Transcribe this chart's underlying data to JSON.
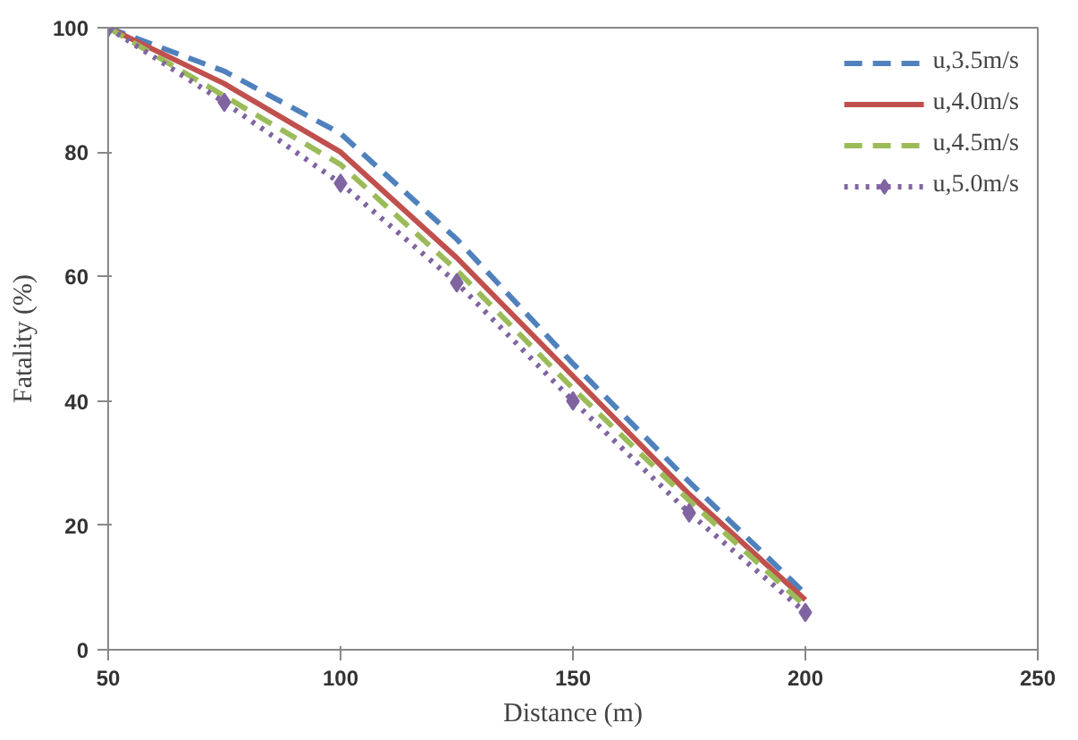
{
  "chart_data": {
    "type": "line",
    "xlabel": "Distance (m)",
    "ylabel": "Fatality (%)",
    "x": [
      50,
      75,
      100,
      125,
      150,
      175,
      200
    ],
    "series": [
      {
        "name": "u,3.5m/s",
        "color": "#4f81bd",
        "line_style": "dashed",
        "values": [
          100,
          93,
          83,
          66,
          46,
          27,
          9
        ]
      },
      {
        "name": "u,4.0m/s",
        "color": "#c0504d",
        "line_style": "solid",
        "values": [
          100,
          91,
          80,
          63,
          44,
          25,
          8
        ]
      },
      {
        "name": "u,4.5m/s",
        "color": "#9bbb59",
        "line_style": "dashed",
        "values": [
          100,
          89,
          78,
          61,
          42,
          24,
          7
        ]
      },
      {
        "name": "u,5.0m/s",
        "color": "#8064a2",
        "line_style": "dotted",
        "marker": "diamond",
        "values": [
          100,
          88,
          75,
          59,
          40,
          22,
          6
        ]
      }
    ],
    "xlim": [
      50,
      250
    ],
    "xticks": [
      50,
      100,
      150,
      200,
      250
    ],
    "ylim": [
      0,
      100
    ],
    "yticks": [
      0,
      20,
      40,
      60,
      80,
      100
    ],
    "grid": false,
    "legend": "top right"
  }
}
